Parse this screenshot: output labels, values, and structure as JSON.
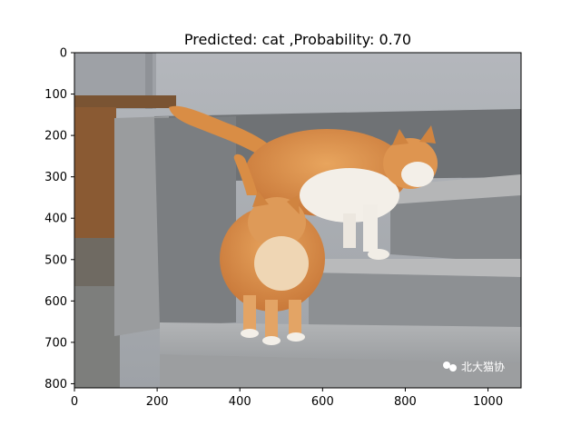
{
  "chart_data": {
    "type": "image",
    "title": "Predicted: cat ,Probability: 0.70",
    "xlabel": "",
    "ylabel": "",
    "xlim": [
      0,
      1080
    ],
    "ylim": [
      810,
      0
    ],
    "x_ticks": [
      "0",
      "200",
      "400",
      "600",
      "800",
      "1000"
    ],
    "y_ticks": [
      "0",
      "100",
      "200",
      "300",
      "400",
      "500",
      "600",
      "700",
      "800"
    ],
    "grid": false,
    "image": {
      "subject": "two orange-and-white cats on concrete steps",
      "watermark": "北大猫协"
    },
    "colors": {
      "wall": "#a9adb3",
      "step_light": "#a7a9ab",
      "step_dark": "#7c7f82",
      "cat_orange": "#d98d45",
      "cat_white": "#f3efe8",
      "wood": "#8a5a33"
    }
  }
}
